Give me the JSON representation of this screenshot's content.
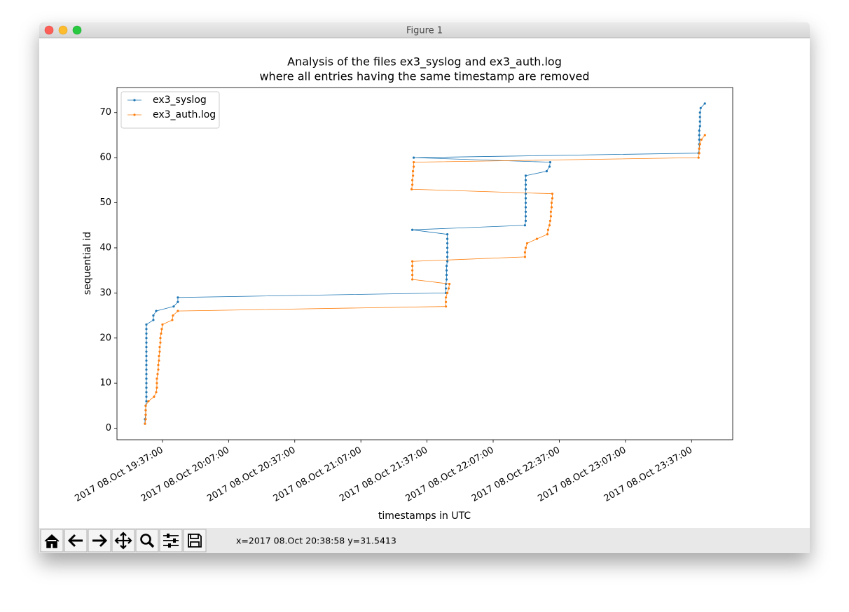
{
  "window": {
    "title": "Figure 1",
    "status": "x=2017 08.Oct 20:38:58 y=31.5413"
  },
  "chart_data": {
    "type": "line",
    "title": [
      "Analysis of the files ex3_syslog and ex3_auth.log",
      "where all entries having the same timestamp are removed"
    ],
    "xlabel": "timestamps in UTC",
    "ylabel": "sequential id",
    "xlim": [
      "2017-10-08T19:16:22",
      "2017-10-08T23:55:40"
    ],
    "xticks": [
      {
        "value": "2017-10-08T19:37:00",
        "label": "2017 08.Oct 19:37:00"
      },
      {
        "value": "2017-10-08T20:07:00",
        "label": "2017 08.Oct 20:07:00"
      },
      {
        "value": "2017-10-08T20:37:00",
        "label": "2017 08.Oct 20:37:00"
      },
      {
        "value": "2017-10-08T21:07:00",
        "label": "2017 08.Oct 21:07:00"
      },
      {
        "value": "2017-10-08T21:37:00",
        "label": "2017 08.Oct 21:37:00"
      },
      {
        "value": "2017-10-08T22:07:00",
        "label": "2017 08.Oct 22:07:00"
      },
      {
        "value": "2017-10-08T22:37:00",
        "label": "2017 08.Oct 22:37:00"
      },
      {
        "value": "2017-10-08T23:07:00",
        "label": "2017 08.Oct 23:07:00"
      },
      {
        "value": "2017-10-08T23:37:00",
        "label": "2017 08.Oct 23:37:00"
      }
    ],
    "ylim": [
      -2.55,
      75.55
    ],
    "yticks": [
      0,
      10,
      20,
      30,
      40,
      50,
      60,
      70
    ],
    "legend": "upper left",
    "series": [
      {
        "name": "ex3_syslog",
        "color": "#1f77b4",
        "x": [
          "2017-10-08T19:29:04",
          "2017-10-08T19:29:04",
          "2017-10-08T19:29:23",
          "2017-10-08T19:29:23",
          "2017-10-08T19:29:23",
          "2017-10-08T19:29:42",
          "2017-10-08T19:29:42",
          "2017-10-08T19:29:42",
          "2017-10-08T19:29:42",
          "2017-10-08T19:29:42",
          "2017-10-08T19:29:42",
          "2017-10-08T19:29:42",
          "2017-10-08T19:29:42",
          "2017-10-08T19:29:42",
          "2017-10-08T19:29:42",
          "2017-10-08T19:29:42",
          "2017-10-08T19:29:42",
          "2017-10-08T19:29:42",
          "2017-10-08T19:29:42",
          "2017-10-08T19:29:42",
          "2017-10-08T19:29:42",
          "2017-10-08T19:29:42",
          "2017-10-08T19:29:42",
          "2017-10-08T19:32:52",
          "2017-10-08T19:32:52",
          "2017-10-08T19:34:09",
          "2017-10-08T19:42:05",
          "2017-10-08T19:43:59",
          "2017-10-08T19:43:59",
          "2017-10-08T21:45:34",
          "2017-10-08T21:45:34",
          "2017-10-08T21:45:34",
          "2017-10-08T21:45:53",
          "2017-10-08T21:45:53",
          "2017-10-08T21:45:53",
          "2017-10-08T21:45:53",
          "2017-10-08T21:46:13",
          "2017-10-08T21:46:13",
          "2017-10-08T21:46:13",
          "2017-10-08T21:46:13",
          "2017-10-08T21:46:13",
          "2017-10-08T21:46:13",
          "2017-10-08T21:46:13",
          "2017-10-08T21:30:20",
          "2017-10-08T22:21:26",
          "2017-10-08T22:21:46",
          "2017-10-08T22:21:46",
          "2017-10-08T22:21:46",
          "2017-10-08T22:21:46",
          "2017-10-08T22:21:46",
          "2017-10-08T22:21:46",
          "2017-10-08T22:21:46",
          "2017-10-08T22:21:46",
          "2017-10-08T22:21:46",
          "2017-10-08T22:21:46",
          "2017-10-08T22:21:46",
          "2017-10-08T22:31:17",
          "2017-10-08T22:32:34",
          "2017-10-08T22:32:52",
          "2017-10-08T21:30:58",
          "2017-10-08T23:40:10",
          "2017-10-08T23:40:29",
          "2017-10-08T23:40:29",
          "2017-10-08T23:40:29",
          "2017-10-08T23:40:29",
          "2017-10-08T23:40:29",
          "2017-10-08T23:40:49",
          "2017-10-08T23:40:49",
          "2017-10-08T23:40:49",
          "2017-10-08T23:40:49",
          "2017-10-08T23:41:08",
          "2017-10-08T23:43:02"
        ],
        "values": [
          1,
          2,
          3,
          4,
          5,
          6,
          7,
          8,
          9,
          10,
          11,
          12,
          13,
          14,
          15,
          16,
          17,
          18,
          19,
          20,
          21,
          22,
          23,
          24,
          25,
          26,
          27,
          28,
          29,
          30,
          31,
          32,
          33,
          34,
          35,
          36,
          37,
          38,
          39,
          40,
          41,
          42,
          43,
          44,
          45,
          46,
          47,
          48,
          49,
          50,
          51,
          52,
          53,
          54,
          55,
          56,
          57,
          58,
          59,
          60,
          61,
          62,
          63,
          64,
          65,
          66,
          67,
          68,
          69,
          70,
          71,
          72
        ]
      },
      {
        "name": "ex3_auth.log",
        "color": "#ff7f0e",
        "x": [
          "2017-10-08T19:29:04",
          "2017-10-08T19:29:23",
          "2017-10-08T19:29:23",
          "2017-10-08T19:29:23",
          "2017-10-08T19:29:23",
          "2017-10-08T19:30:39",
          "2017-10-08T19:33:11",
          "2017-10-08T19:34:09",
          "2017-10-08T19:34:28",
          "2017-10-08T19:34:28",
          "2017-10-08T19:34:28",
          "2017-10-08T19:34:47",
          "2017-10-08T19:35:06",
          "2017-10-08T19:35:06",
          "2017-10-08T19:35:25",
          "2017-10-08T19:35:25",
          "2017-10-08T19:35:44",
          "2017-10-08T19:35:44",
          "2017-10-08T19:36:03",
          "2017-10-08T19:36:03",
          "2017-10-08T19:36:22",
          "2017-10-08T19:36:41",
          "2017-10-08T19:37:00",
          "2017-10-08T19:41:27",
          "2017-10-08T19:41:46",
          "2017-10-08T19:43:59",
          "2017-10-08T21:45:34",
          "2017-10-08T21:45:34",
          "2017-10-08T21:45:34",
          "2017-10-08T21:46:13",
          "2017-10-08T21:46:50",
          "2017-10-08T21:47:10",
          "2017-10-08T21:30:20",
          "2017-10-08T21:30:20",
          "2017-10-08T21:30:20",
          "2017-10-08T21:30:20",
          "2017-10-08T21:30:20",
          "2017-10-08T22:21:26",
          "2017-10-08T22:21:26",
          "2017-10-08T22:21:46",
          "2017-10-08T22:22:24",
          "2017-10-08T22:26:50",
          "2017-10-08T22:31:36",
          "2017-10-08T22:31:55",
          "2017-10-08T22:32:34",
          "2017-10-08T22:32:52",
          "2017-10-08T22:33:11",
          "2017-10-08T22:33:11",
          "2017-10-08T22:33:31",
          "2017-10-08T22:33:31",
          "2017-10-08T22:33:50",
          "2017-10-08T22:33:50",
          "2017-10-08T21:30:01",
          "2017-10-08T21:30:20",
          "2017-10-08T21:30:20",
          "2017-10-08T21:30:39",
          "2017-10-08T21:30:39",
          "2017-10-08T21:30:58",
          "2017-10-08T21:30:58",
          "2017-10-08T23:40:10",
          "2017-10-08T23:40:29",
          "2017-10-08T23:40:29",
          "2017-10-08T23:40:49",
          "2017-10-08T23:41:27",
          "2017-10-08T23:43:02"
        ],
        "values": [
          1,
          2,
          3,
          4,
          5,
          6,
          7,
          8,
          9,
          10,
          11,
          12,
          13,
          14,
          15,
          16,
          17,
          18,
          19,
          20,
          21,
          22,
          23,
          24,
          25,
          26,
          27,
          28,
          29,
          30,
          31,
          32,
          33,
          34,
          35,
          36,
          37,
          38,
          39,
          40,
          41,
          42,
          43,
          44,
          45,
          46,
          47,
          48,
          49,
          50,
          51,
          52,
          53,
          54,
          55,
          56,
          57,
          58,
          59,
          60,
          61,
          62,
          63,
          64,
          65
        ]
      }
    ]
  }
}
